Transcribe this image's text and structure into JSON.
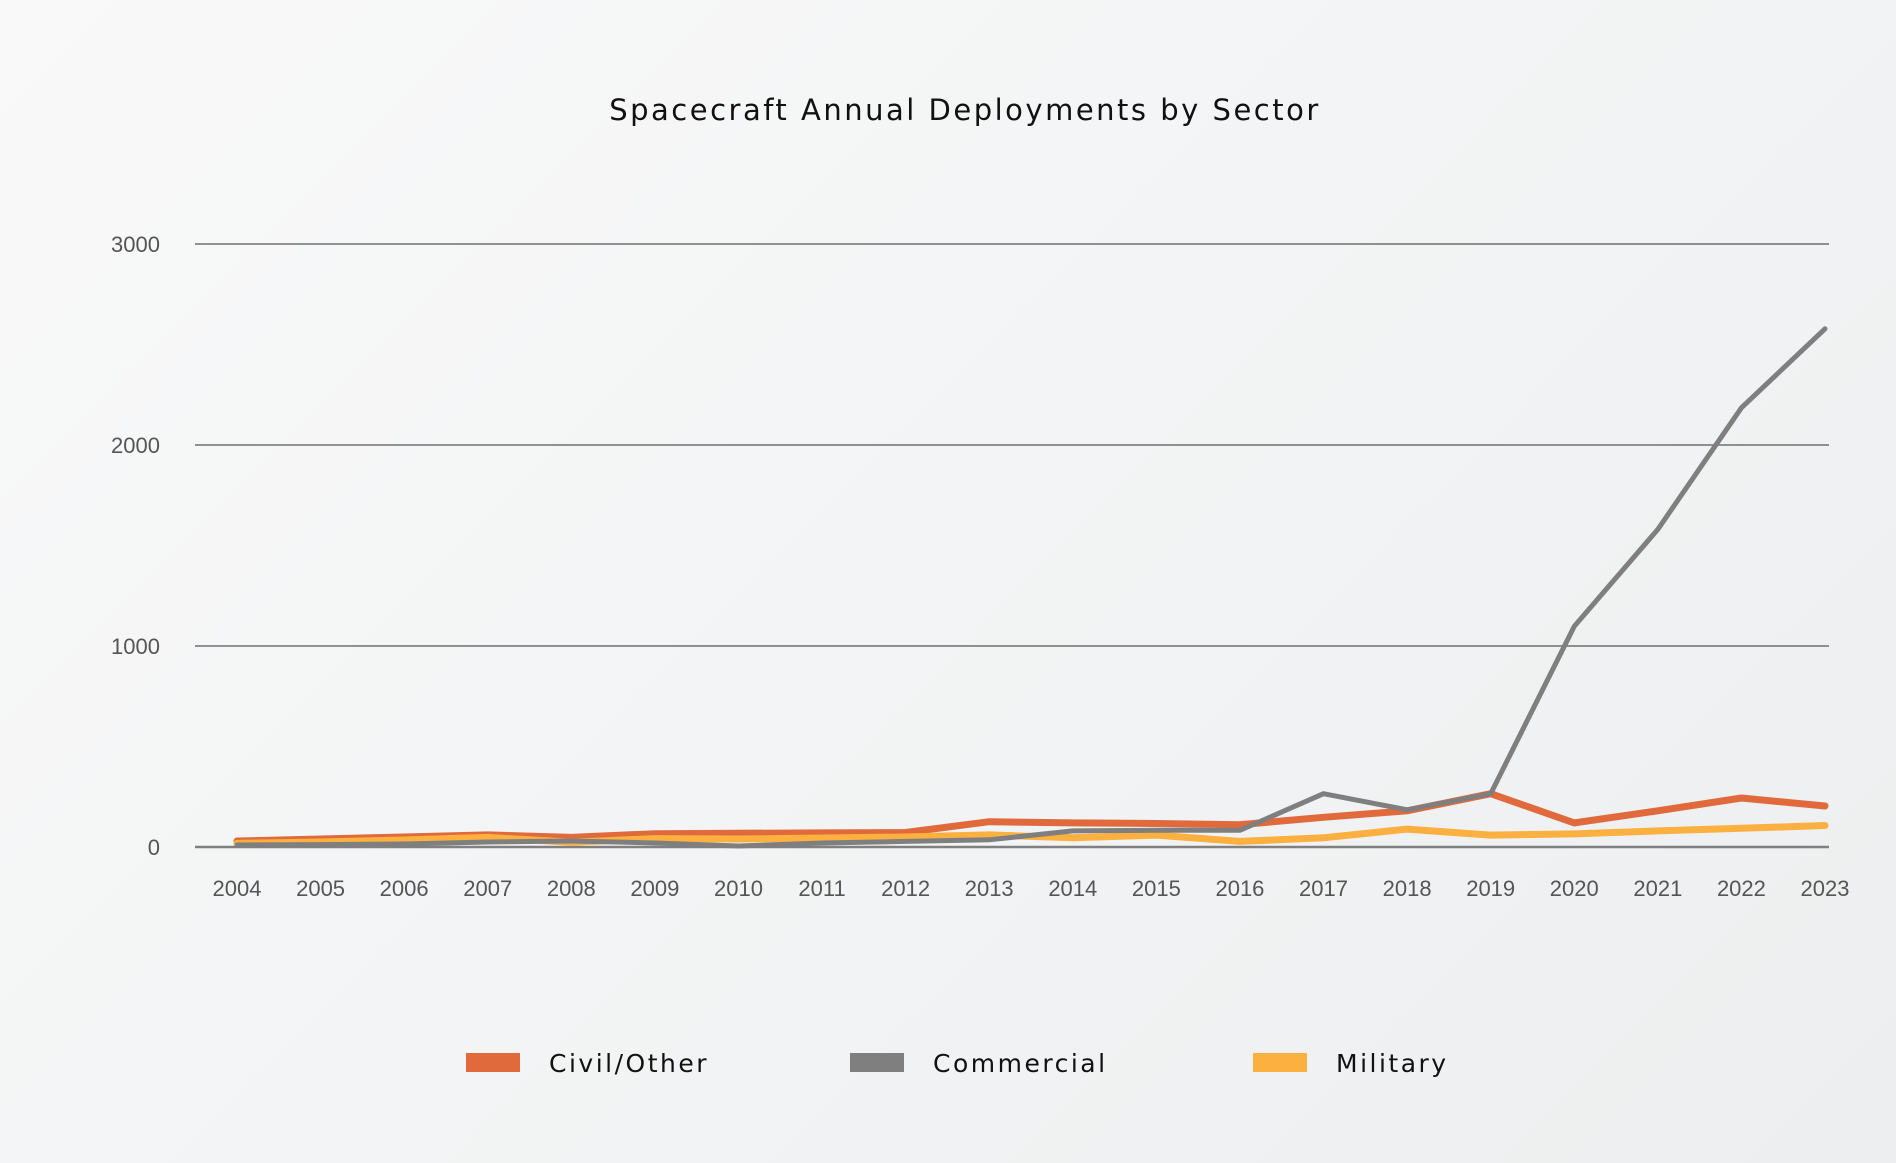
{
  "chart_data": {
    "type": "line",
    "title": "Spacecraft Annual Deployments by Sector",
    "xlabel": "",
    "ylabel": "",
    "x": [
      2004,
      2005,
      2006,
      2007,
      2008,
      2009,
      2010,
      2011,
      2012,
      2013,
      2014,
      2015,
      2016,
      2017,
      2018,
      2019,
      2020,
      2021,
      2022,
      2023
    ],
    "ylim": [
      0,
      3000
    ],
    "yticks": [
      0,
      1000,
      2000,
      3000
    ],
    "grid": "horizontal",
    "legend_position": "bottom",
    "series": [
      {
        "name": "Civil/Other",
        "color": "#e06a3b",
        "values": [
          30,
          40,
          50,
          60,
          48,
          66,
          68,
          70,
          72,
          126,
          120,
          117,
          111,
          148,
          180,
          265,
          120,
          180,
          244,
          204
        ]
      },
      {
        "name": "Commercial",
        "color": "#7f7f7f",
        "values": [
          10,
          12,
          15,
          25,
          30,
          20,
          5,
          20,
          28,
          36,
          80,
          83,
          83,
          265,
          185,
          265,
          1098,
          1580,
          2185,
          2578
        ]
      },
      {
        "name": "Military",
        "color": "#fbb040",
        "values": [
          18,
          25,
          35,
          48,
          24,
          42,
          40,
          45,
          50,
          60,
          46,
          59,
          28,
          46,
          89,
          59,
          65,
          80,
          93,
          107
        ]
      }
    ]
  }
}
